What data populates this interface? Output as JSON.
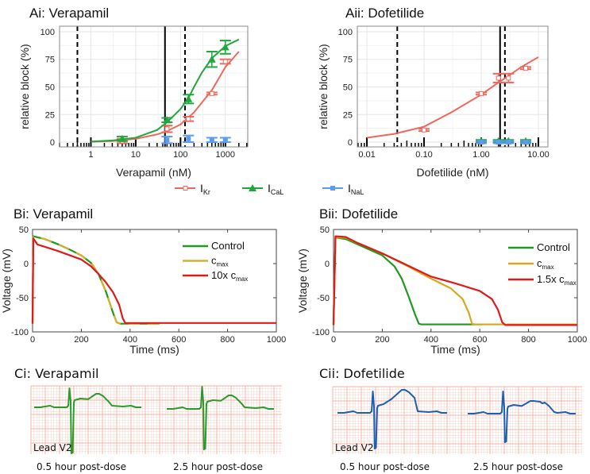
{
  "chart_data": [
    {
      "panel": "Ai",
      "type": "scatter",
      "title": "Ai: Verapamil",
      "xlabel": "Verapamil (nM)",
      "ylabel": "relative block (%)",
      "xscale": "log",
      "xlim": [
        0.2,
        3160
      ],
      "ylim": [
        -4.3,
        105
      ],
      "xticks": [
        1,
        10,
        100,
        1000
      ],
      "xticklabels": [
        "1",
        "10",
        "100",
        "1000"
      ],
      "yticks": [
        0,
        25,
        50,
        75,
        100
      ],
      "yticklabels": [
        "0",
        "25",
        "50",
        "75",
        "100"
      ],
      "grid": true,
      "vlines": [
        {
          "x": 0.5,
          "style": "dashed"
        },
        {
          "x": 45,
          "style": "solid"
        },
        {
          "x": 126,
          "style": "dashed"
        }
      ],
      "series": [
        {
          "name": "IKr",
          "color": "#f0675c",
          "marker": "open-square",
          "points": [
            {
              "x": 5,
              "y": 1,
              "err": 2
            },
            {
              "x": 50,
              "y": 12,
              "err": 3
            },
            {
              "x": 150,
              "y": 21,
              "err": 2
            },
            {
              "x": 500,
              "y": 44,
              "err": 1
            },
            {
              "x": 1000,
              "y": 73,
              "err": 2
            }
          ],
          "fit": [
            [
              1,
              0.3
            ],
            [
              3,
              1
            ],
            [
              10,
              3
            ],
            [
              30,
              7
            ],
            [
              50,
              10
            ],
            [
              100,
              16
            ],
            [
              200,
              27
            ],
            [
              500,
              47
            ],
            [
              1000,
              68
            ],
            [
              2000,
              82
            ]
          ]
        },
        {
          "name": "ICaL",
          "color": "#1fa83c",
          "marker": "triangle",
          "points": [
            {
              "x": 5,
              "y": 3,
              "err": 2
            },
            {
              "x": 50,
              "y": 20,
              "err": 2
            },
            {
              "x": 150,
              "y": 39,
              "err": 4
            },
            {
              "x": 500,
              "y": 75,
              "err": 7
            },
            {
              "x": 1000,
              "y": 86,
              "err": 6
            }
          ],
          "fit": [
            [
              1,
              0.5
            ],
            [
              3,
              1.5
            ],
            [
              10,
              4
            ],
            [
              30,
              11
            ],
            [
              50,
              18
            ],
            [
              100,
              30
            ],
            [
              150,
              40
            ],
            [
              200,
              50
            ],
            [
              300,
              63
            ],
            [
              500,
              76
            ],
            [
              1000,
              87
            ],
            [
              2000,
              93
            ]
          ]
        },
        {
          "name": "INaL",
          "color": "#5b9bf0",
          "marker": "square",
          "points": [
            {
              "x": 50,
              "y": 2,
              "err": 3
            },
            {
              "x": 150,
              "y": 3,
              "err": 3
            },
            {
              "x": 500,
              "y": 2,
              "err": 2
            },
            {
              "x": 1000,
              "y": 2,
              "err": 2
            }
          ],
          "fit": []
        }
      ]
    },
    {
      "panel": "Aii",
      "type": "scatter",
      "title": "Aii: Dofetilide",
      "xlabel": "Dofetilide (nM)",
      "ylabel": "relative block (%)",
      "xscale": "log",
      "xlim": [
        0.0068,
        14.7
      ],
      "ylim": [
        -4.3,
        105
      ],
      "xticks": [
        0.01,
        0.1,
        1,
        10
      ],
      "xticklabels": [
        "0.01",
        "0.10",
        "1.00",
        "10.00"
      ],
      "yticks": [
        0,
        25,
        50,
        75,
        100
      ],
      "yticklabels": [
        "0",
        "25",
        "50",
        "75",
        "100"
      ],
      "grid": true,
      "vlines": [
        {
          "x": 0.034,
          "style": "dashed"
        },
        {
          "x": 2.14,
          "style": "solid"
        },
        {
          "x": 2.6,
          "style": "dashed"
        }
      ],
      "series": [
        {
          "name": "IKr",
          "color": "#f0675c",
          "marker": "open-square",
          "points": [
            {
              "x": 0.1,
              "y": 11,
              "err": 1
            },
            {
              "x": 1,
              "y": 44,
              "err": 1
            },
            {
              "x": 2,
              "y": 58,
              "err": 4
            },
            {
              "x": 3,
              "y": 58,
              "err": 4
            },
            {
              "x": 6,
              "y": 67,
              "err": 1
            }
          ],
          "fit": [
            [
              0.01,
              4
            ],
            [
              0.03,
              7.5
            ],
            [
              0.1,
              14
            ],
            [
              0.3,
              27
            ],
            [
              1,
              43
            ],
            [
              2,
              54
            ],
            [
              3,
              60
            ],
            [
              5,
              68
            ],
            [
              10,
              77
            ]
          ]
        },
        {
          "name": "ICaL",
          "color": "#1fa83c",
          "marker": "triangle",
          "points": [
            {
              "x": 1,
              "y": 1,
              "err": 1
            },
            {
              "x": 2,
              "y": 1,
              "err": 1
            },
            {
              "x": 3,
              "y": 1,
              "err": 1
            },
            {
              "x": 6,
              "y": 1,
              "err": 1
            }
          ],
          "fit": []
        },
        {
          "name": "INaL",
          "color": "#5b9bf0",
          "marker": "square",
          "points": [
            {
              "x": 1,
              "y": 0,
              "err": 1
            },
            {
              "x": 2,
              "y": 0,
              "err": 1
            },
            {
              "x": 3,
              "y": 0,
              "err": 1
            },
            {
              "x": 6,
              "y": 0,
              "err": 1
            }
          ],
          "fit": []
        }
      ]
    },
    {
      "panel": "Bi",
      "type": "line",
      "title": "Bi: Verapamil",
      "xlabel": "Time (ms)",
      "ylabel": "Voltage (mV)",
      "xlim": [
        0,
        1000
      ],
      "ylim": [
        -100,
        50
      ],
      "xticks": [
        0,
        200,
        400,
        600,
        800,
        1000
      ],
      "xticklabels": [
        "0",
        "200",
        "400",
        "600",
        "800",
        "1000"
      ],
      "yticks": [
        -100,
        -50,
        0,
        50
      ],
      "yticklabels": [
        "-100",
        "-50",
        "0",
        "50"
      ],
      "grid": false,
      "legend": "top-right",
      "series": [
        {
          "name": "Control",
          "sub": "",
          "color": "#1e9a1e",
          "points": [
            [
              0,
              -88
            ],
            [
              3,
              40
            ],
            [
              50,
              36
            ],
            [
              100,
              29
            ],
            [
              150,
              21
            ],
            [
              200,
              12
            ],
            [
              240,
              1
            ],
            [
              270,
              -15
            ],
            [
              300,
              -40
            ],
            [
              330,
              -72
            ],
            [
              345,
              -86
            ],
            [
              360,
              -88
            ],
            [
              520,
              -88
            ]
          ]
        },
        {
          "name": "c",
          "sub": "max",
          "color": "#d6b02a",
          "dash": true,
          "points": [
            [
              0,
              -88
            ],
            [
              3,
              40
            ],
            [
              50,
              36
            ],
            [
              100,
              29
            ],
            [
              150,
              21
            ],
            [
              200,
              12
            ],
            [
              240,
              1
            ],
            [
              270,
              -15
            ],
            [
              300,
              -40
            ],
            [
              330,
              -72
            ],
            [
              345,
              -86
            ],
            [
              360,
              -88
            ],
            [
              520,
              -88
            ]
          ]
        },
        {
          "name": "10x c",
          "sub": "max",
          "color": "#e01a1a",
          "points": [
            [
              0,
              -88
            ],
            [
              3,
              37
            ],
            [
              20,
              28
            ],
            [
              100,
              19
            ],
            [
              200,
              6
            ],
            [
              240,
              -4
            ],
            [
              270,
              -15
            ],
            [
              300,
              -27
            ],
            [
              330,
              -42
            ],
            [
              355,
              -60
            ],
            [
              370,
              -80
            ],
            [
              380,
              -87
            ],
            [
              1000,
              -87
            ]
          ]
        }
      ]
    },
    {
      "panel": "Bii",
      "type": "line",
      "title": "Bii: Dofetilide",
      "xlabel": "Time (ms)",
      "ylabel": "Voltage (mV)",
      "xlim": [
        0,
        1000
      ],
      "ylim": [
        -100,
        50
      ],
      "xticks": [
        0,
        200,
        400,
        600,
        800,
        1000
      ],
      "xticklabels": [
        "0",
        "200",
        "400",
        "600",
        "800",
        "1000"
      ],
      "yticks": [
        -100,
        -50,
        0,
        50
      ],
      "yticklabels": [
        "-100",
        "-50",
        "0",
        "50"
      ],
      "grid": false,
      "legend": "top-right",
      "series": [
        {
          "name": "Control",
          "sub": "",
          "color": "#1e9a1e",
          "points": [
            [
              0,
              -90
            ],
            [
              8,
              38
            ],
            [
              50,
              36
            ],
            [
              100,
              28
            ],
            [
              200,
              12
            ],
            [
              250,
              -4
            ],
            [
              280,
              -22
            ],
            [
              310,
              -50
            ],
            [
              335,
              -75
            ],
            [
              350,
              -88
            ],
            [
              360,
              -89
            ],
            [
              610,
              -89
            ]
          ]
        },
        {
          "name": "c",
          "sub": "max",
          "color": "#d6a81e",
          "points": [
            [
              0,
              -90
            ],
            [
              8,
              38
            ],
            [
              50,
              38
            ],
            [
              100,
              30
            ],
            [
              200,
              15
            ],
            [
              300,
              -3
            ],
            [
              400,
              -22
            ],
            [
              480,
              -36
            ],
            [
              530,
              -52
            ],
            [
              555,
              -72
            ],
            [
              568,
              -88
            ],
            [
              580,
              -89
            ],
            [
              1000,
              -89
            ]
          ]
        },
        {
          "name": "1.5x c",
          "sub": "max",
          "color": "#e01a1a",
          "points": [
            [
              0,
              -90
            ],
            [
              8,
              40
            ],
            [
              50,
              39
            ],
            [
              100,
              30
            ],
            [
              200,
              15
            ],
            [
              300,
              -2
            ],
            [
              400,
              -19
            ],
            [
              500,
              -29
            ],
            [
              600,
              -40
            ],
            [
              650,
              -52
            ],
            [
              675,
              -68
            ],
            [
              692,
              -86
            ],
            [
              705,
              -90
            ],
            [
              1000,
              -90
            ]
          ]
        }
      ]
    }
  ],
  "legend_a": [
    {
      "main": "I",
      "sub": "Kr",
      "color": "#f0675c"
    },
    {
      "main": "I",
      "sub": "CaL",
      "color": "#1fa83c"
    },
    {
      "main": "I",
      "sub": "NaL",
      "color": "#5b9bf0"
    }
  ],
  "ecg": {
    "ci": {
      "title": "Ci: Verapamil",
      "lead": "Lead V2",
      "color": "#2a9a2a",
      "captions": [
        "0.5 hour post-dose",
        "2.5 hour post-dose"
      ]
    },
    "cii": {
      "title": "Cii: Dofetilide",
      "lead": "Lead V2",
      "color": "#1a5fb0",
      "captions": [
        "0.5 hour post-dose",
        "2.5 hour post-dose"
      ]
    },
    "grid_color": "#f3b3a5"
  }
}
